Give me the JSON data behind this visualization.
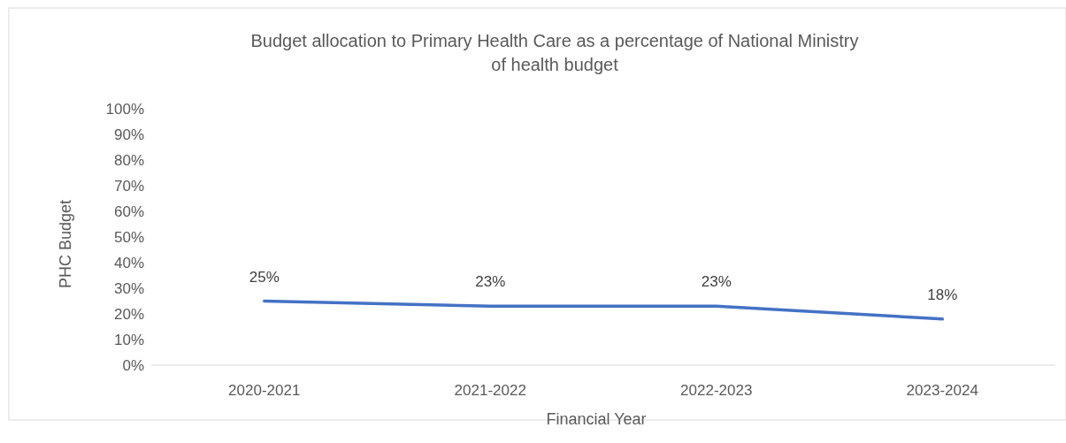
{
  "chart_data": {
    "type": "line",
    "title": "Budget allocation to Primary Health Care as a percentage of National Ministry\nof health budget",
    "xlabel": "Financial Year",
    "ylabel": "PHC Budget",
    "categories": [
      "2020-2021",
      "2021-2022",
      "2022-2023",
      "2023-2024"
    ],
    "series": [
      {
        "color": "#4472c4",
        "values": [
          25,
          23,
          23,
          18
        ],
        "value_labels": [
          "25%",
          "23%",
          "23%",
          "18%"
        ]
      }
    ],
    "ylim": [
      0,
      100
    ],
    "yticks": [
      {
        "value": 0,
        "label": "0%"
      },
      {
        "value": 10,
        "label": "10%"
      },
      {
        "value": 20,
        "label": "20%"
      },
      {
        "value": 30,
        "label": "30%"
      },
      {
        "value": 40,
        "label": "40%"
      },
      {
        "value": 50,
        "label": "50%"
      },
      {
        "value": 60,
        "label": "60%"
      },
      {
        "value": 70,
        "label": "70%"
      },
      {
        "value": 80,
        "label": "80%"
      },
      {
        "value": 90,
        "label": "90%"
      },
      {
        "value": 100,
        "label": "100%"
      }
    ],
    "grid": false,
    "marker": "none",
    "line_style": "solid"
  }
}
